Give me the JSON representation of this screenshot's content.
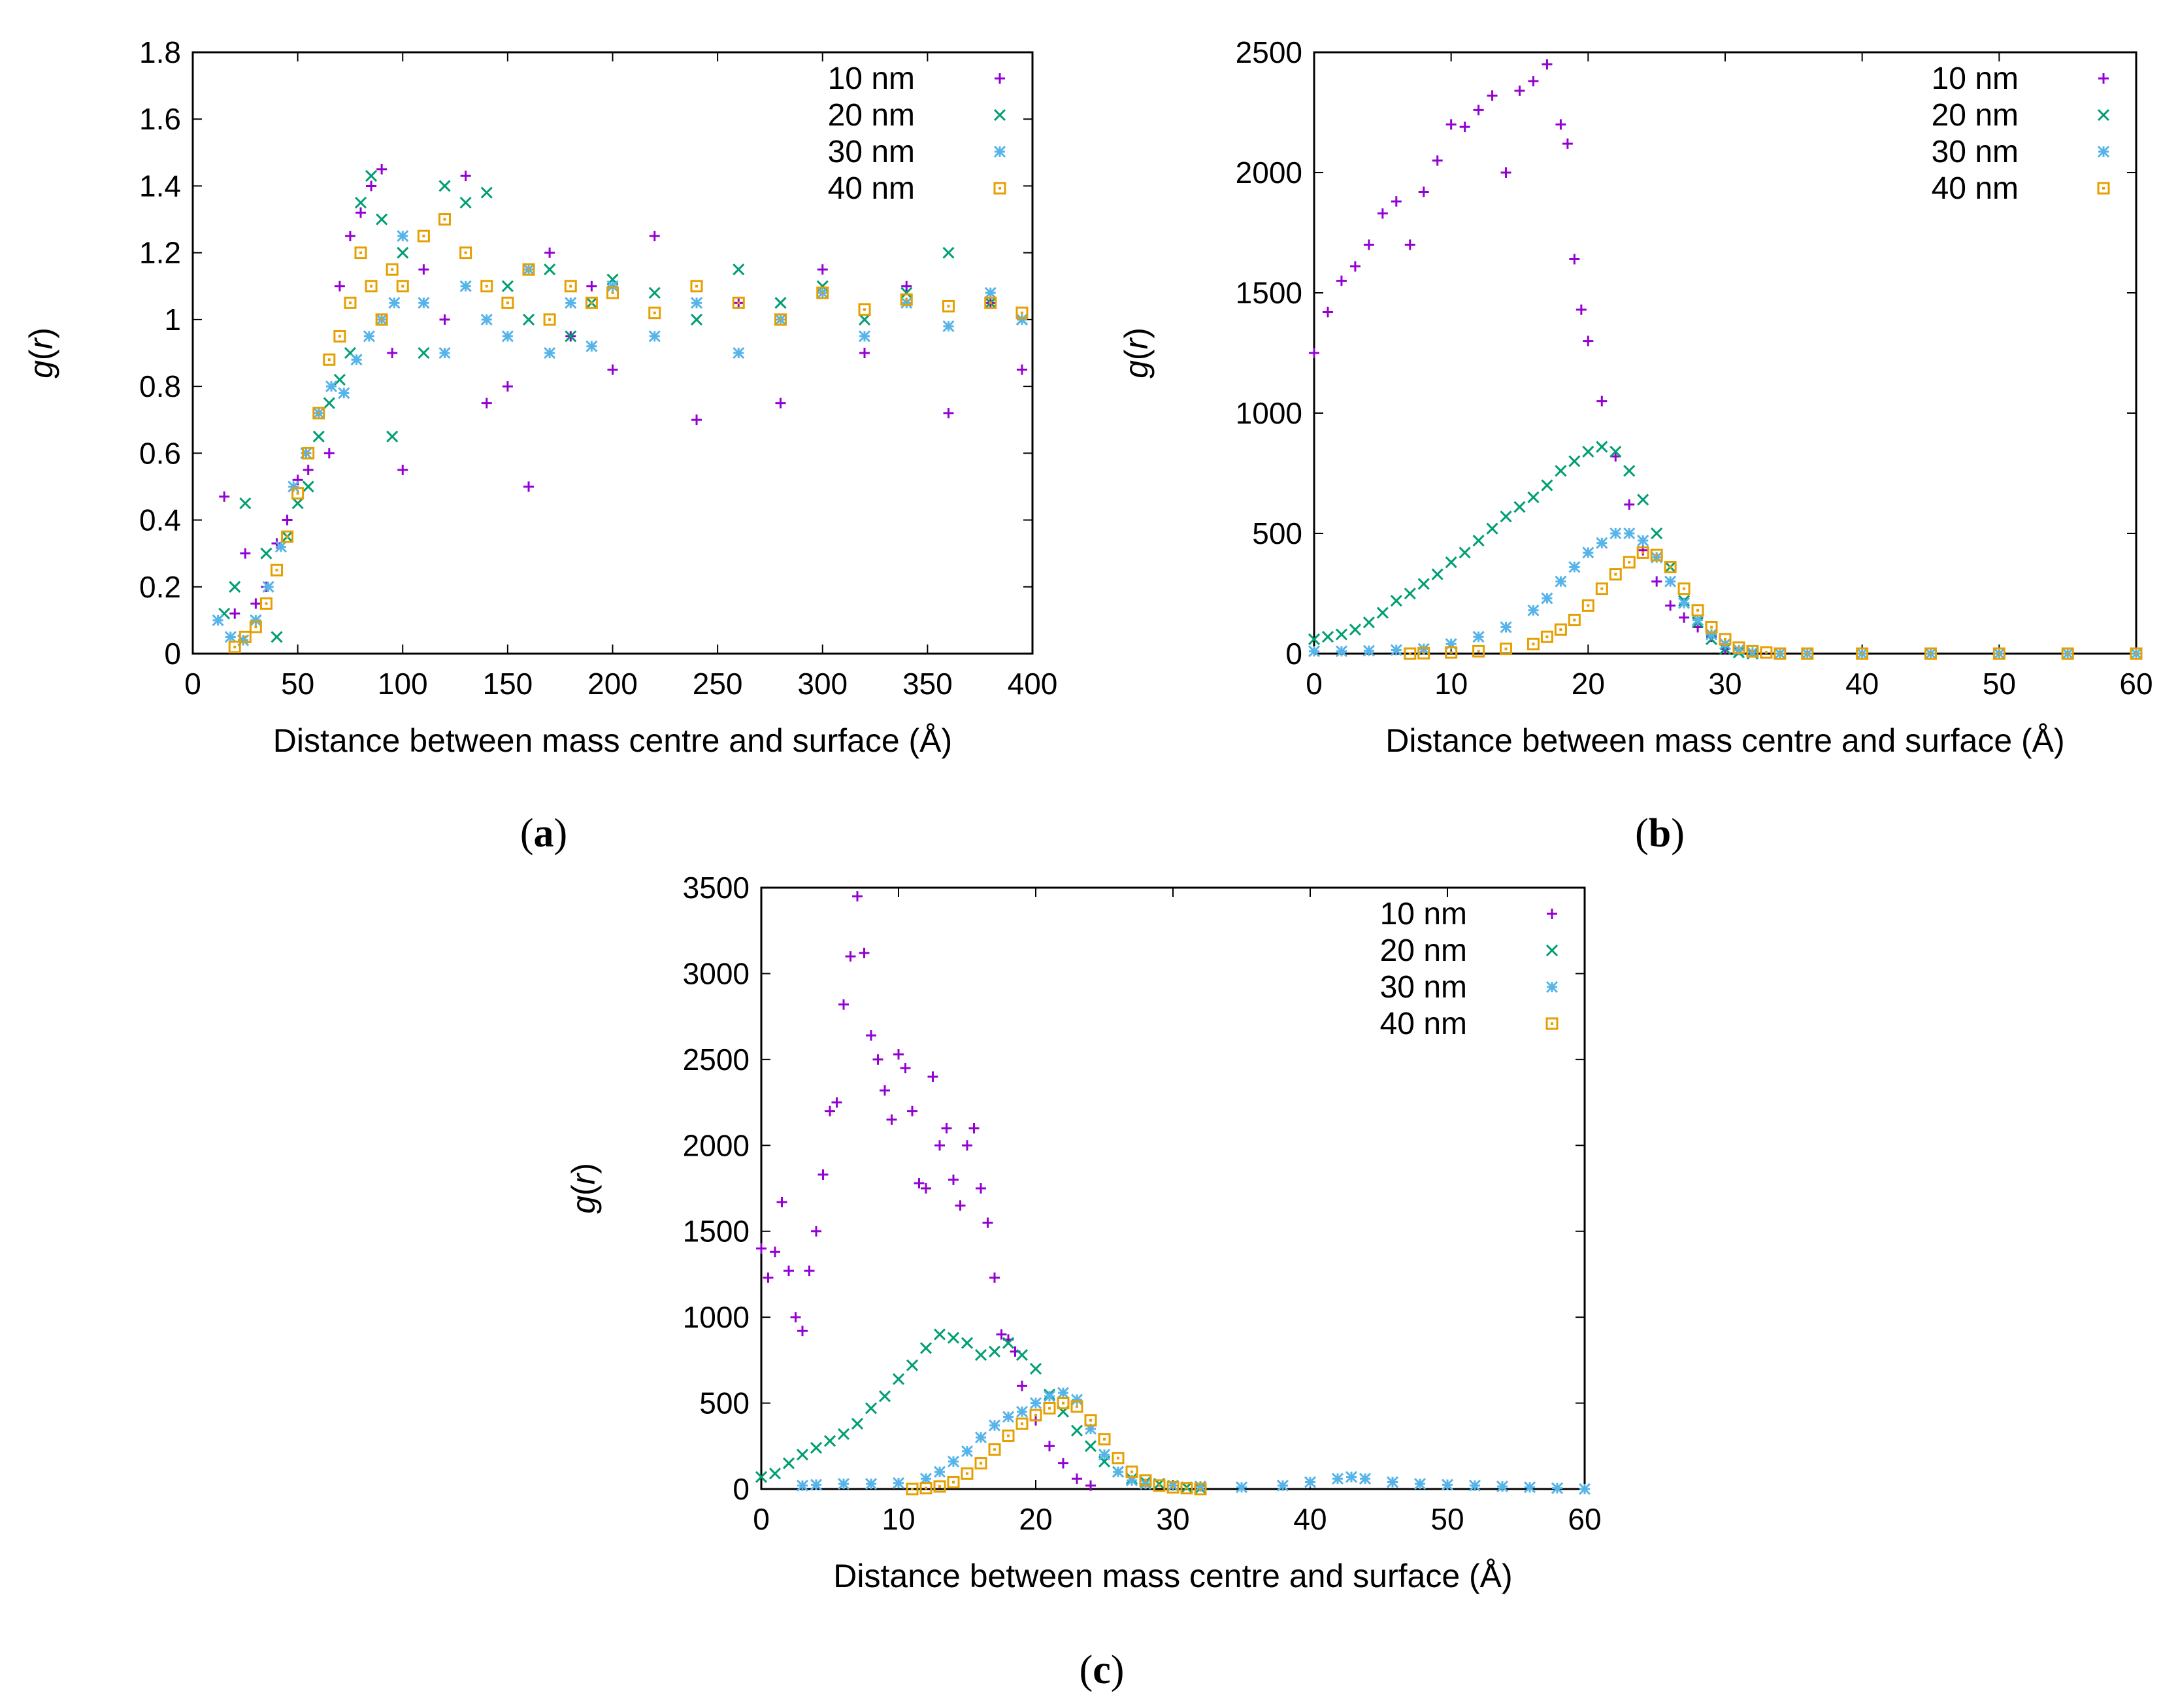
{
  "figure": {
    "panels": [
      {
        "id": "a",
        "caption": "a"
      },
      {
        "id": "b",
        "caption": "b"
      },
      {
        "id": "c",
        "caption": "c"
      }
    ]
  },
  "colors": {
    "10 nm": "#9400D3",
    "20 nm": "#009E73",
    "30 nm": "#56B4E9",
    "40 nm": "#E69F00"
  },
  "chart_data": [
    {
      "id": "a",
      "type": "scatter",
      "title": "",
      "xlabel": "Distance between mass centre and surface (Å)",
      "ylabel_main": "g",
      "ylabel_arg": "r",
      "xlim": [
        0,
        400
      ],
      "ylim": [
        0,
        1.8
      ],
      "xticks": [
        0,
        50,
        100,
        150,
        200,
        250,
        300,
        350,
        400
      ],
      "yticks": [
        0,
        0.2,
        0.4,
        0.6,
        0.8,
        1,
        1.2,
        1.4,
        1.6,
        1.8
      ],
      "ytick_labels": [
        "0",
        "0.2",
        "0.4",
        "0.6",
        "0.8",
        "1",
        "1.2",
        "1.4",
        "1.6",
        "1.8"
      ],
      "legend_position": "top-right",
      "series": [
        {
          "name": "10 nm",
          "marker": "plus",
          "x": [
            15,
            20,
            25,
            30,
            35,
            40,
            45,
            50,
            55,
            60,
            65,
            70,
            75,
            80,
            85,
            90,
            95,
            100,
            110,
            120,
            130,
            140,
            150,
            160,
            170,
            180,
            190,
            200,
            220,
            240,
            260,
            280,
            300,
            320,
            340,
            360,
            380,
            395
          ],
          "y": [
            0.47,
            0.12,
            0.3,
            0.15,
            0.2,
            0.33,
            0.4,
            0.52,
            0.55,
            0.72,
            0.6,
            1.1,
            1.25,
            1.32,
            1.4,
            1.45,
            0.9,
            0.55,
            1.15,
            1.0,
            1.43,
            0.75,
            0.8,
            0.5,
            1.2,
            0.95,
            1.1,
            0.85,
            1.25,
            0.7,
            1.05,
            0.75,
            1.15,
            0.9,
            1.1,
            0.72,
            1.05,
            0.85
          ]
        },
        {
          "name": "20 nm",
          "marker": "cross",
          "x": [
            15,
            20,
            25,
            30,
            35,
            40,
            45,
            50,
            55,
            60,
            65,
            70,
            75,
            80,
            85,
            90,
            95,
            100,
            110,
            120,
            130,
            140,
            150,
            160,
            170,
            180,
            190,
            200,
            220,
            240,
            260,
            280,
            300,
            320,
            340,
            360,
            380,
            395
          ],
          "y": [
            0.12,
            0.2,
            0.45,
            0.1,
            0.3,
            0.05,
            0.35,
            0.45,
            0.5,
            0.65,
            0.75,
            0.82,
            0.9,
            1.35,
            1.43,
            1.3,
            0.65,
            1.2,
            0.9,
            1.4,
            1.35,
            1.38,
            1.1,
            1.0,
            1.15,
            0.95,
            1.05,
            1.12,
            1.08,
            1.0,
            1.15,
            1.05,
            1.1,
            1.0,
            1.08,
            1.2,
            1.05,
            1.0
          ]
        },
        {
          "name": "30 nm",
          "marker": "star",
          "x": [
            12,
            18,
            24,
            30,
            36,
            42,
            48,
            54,
            60,
            66,
            72,
            78,
            84,
            90,
            96,
            100,
            110,
            120,
            130,
            140,
            150,
            160,
            170,
            180,
            190,
            200,
            220,
            240,
            260,
            280,
            300,
            320,
            340,
            360,
            380,
            395
          ],
          "y": [
            0.1,
            0.05,
            0.04,
            0.1,
            0.2,
            0.32,
            0.5,
            0.6,
            0.72,
            0.8,
            0.78,
            0.88,
            0.95,
            1.0,
            1.05,
            1.25,
            1.05,
            0.9,
            1.1,
            1.0,
            0.95,
            1.15,
            0.9,
            1.05,
            0.92,
            1.1,
            0.95,
            1.05,
            0.9,
            1.0,
            1.08,
            0.95,
            1.05,
            0.98,
            1.08,
            1.0
          ]
        },
        {
          "name": "40 nm",
          "marker": "square",
          "x": [
            20,
            25,
            30,
            35,
            40,
            45,
            50,
            55,
            60,
            65,
            70,
            75,
            80,
            85,
            90,
            95,
            100,
            110,
            120,
            130,
            140,
            150,
            160,
            170,
            180,
            190,
            200,
            220,
            240,
            260,
            280,
            300,
            320,
            340,
            360,
            380,
            395
          ],
          "y": [
            0.02,
            0.05,
            0.08,
            0.15,
            0.25,
            0.35,
            0.48,
            0.6,
            0.72,
            0.88,
            0.95,
            1.05,
            1.2,
            1.1,
            1.0,
            1.15,
            1.1,
            1.25,
            1.3,
            1.2,
            1.1,
            1.05,
            1.15,
            1.0,
            1.1,
            1.05,
            1.08,
            1.02,
            1.1,
            1.05,
            1.0,
            1.08,
            1.03,
            1.06,
            1.04,
            1.05,
            1.02
          ]
        }
      ]
    },
    {
      "id": "b",
      "type": "scatter",
      "title": "",
      "xlabel": "Distance between mass centre and surface (Å)",
      "ylabel_main": "g",
      "ylabel_arg": "r",
      "xlim": [
        0,
        60
      ],
      "ylim": [
        0,
        2500
      ],
      "xticks": [
        0,
        10,
        20,
        30,
        40,
        50,
        60
      ],
      "yticks": [
        0,
        500,
        1000,
        1500,
        2000,
        2500
      ],
      "ytick_labels": [
        "0",
        "500",
        "1000",
        "1500",
        "2000",
        "2500"
      ],
      "legend_position": "top-right",
      "series": [
        {
          "name": "10 nm",
          "marker": "plus",
          "x": [
            0,
            1,
            2,
            3,
            4,
            5,
            6,
            7,
            8,
            9,
            10,
            11,
            12,
            13,
            14,
            15,
            16,
            17,
            18,
            18.5,
            19,
            19.5,
            20,
            21,
            22,
            23,
            24,
            25,
            26,
            27,
            28,
            29,
            30
          ],
          "y": [
            1250,
            1420,
            1550,
            1610,
            1700,
            1830,
            1880,
            1700,
            1920,
            2050,
            2200,
            2190,
            2260,
            2320,
            2000,
            2340,
            2380,
            2450,
            2200,
            2120,
            1640,
            1430,
            1300,
            1050,
            820,
            620,
            430,
            300,
            200,
            150,
            110,
            70,
            20
          ]
        },
        {
          "name": "20 nm",
          "marker": "cross",
          "x": [
            0,
            1,
            2,
            3,
            4,
            5,
            6,
            7,
            8,
            9,
            10,
            11,
            12,
            13,
            14,
            15,
            16,
            17,
            18,
            19,
            20,
            21,
            22,
            23,
            24,
            25,
            26,
            27,
            28,
            29,
            30,
            31,
            32
          ],
          "y": [
            60,
            70,
            80,
            100,
            130,
            170,
            220,
            250,
            290,
            330,
            380,
            420,
            470,
            520,
            570,
            610,
            650,
            700,
            760,
            800,
            840,
            860,
            840,
            760,
            640,
            500,
            360,
            220,
            130,
            60,
            20,
            5,
            0
          ]
        },
        {
          "name": "30 nm",
          "marker": "star",
          "x": [
            0,
            2,
            4,
            6,
            8,
            10,
            12,
            14,
            16,
            17,
            18,
            19,
            20,
            21,
            22,
            23,
            24,
            25,
            26,
            27,
            28,
            29,
            30,
            31,
            32,
            34,
            36,
            40,
            45,
            50,
            55,
            60
          ],
          "y": [
            10,
            10,
            12,
            15,
            20,
            40,
            70,
            110,
            180,
            230,
            300,
            360,
            420,
            460,
            500,
            500,
            470,
            400,
            300,
            210,
            140,
            80,
            40,
            15,
            5,
            0,
            0,
            0,
            0,
            0,
            0,
            0
          ]
        },
        {
          "name": "40 nm",
          "marker": "square",
          "x": [
            7,
            8,
            10,
            12,
            14,
            16,
            17,
            18,
            19,
            20,
            21,
            22,
            23,
            24,
            25,
            26,
            27,
            28,
            29,
            30,
            31,
            32,
            33,
            34,
            36,
            40,
            45,
            50,
            55,
            60
          ],
          "y": [
            0,
            2,
            5,
            10,
            20,
            40,
            70,
            100,
            140,
            200,
            270,
            330,
            380,
            420,
            410,
            360,
            270,
            180,
            110,
            60,
            25,
            10,
            5,
            0,
            0,
            0,
            0,
            0,
            0,
            0
          ]
        }
      ]
    },
    {
      "id": "c",
      "type": "scatter",
      "title": "",
      "xlabel": "Distance between mass centre and surface (Å)",
      "ylabel_main": "g",
      "ylabel_arg": "r",
      "xlim": [
        0,
        60
      ],
      "ylim": [
        0,
        3500
      ],
      "xticks": [
        0,
        10,
        20,
        30,
        40,
        50,
        60
      ],
      "yticks": [
        0,
        500,
        1000,
        1500,
        2000,
        2500,
        3000,
        3500
      ],
      "ytick_labels": [
        "0",
        "500",
        "1000",
        "1500",
        "2000",
        "2500",
        "3000",
        "3500"
      ],
      "legend_position": "top-right",
      "series": [
        {
          "name": "10 nm",
          "marker": "plus",
          "x": [
            0,
            0.5,
            1,
            1.5,
            2,
            2.5,
            3,
            3.5,
            4,
            4.5,
            5,
            5.5,
            6,
            6.5,
            7,
            7.5,
            8,
            8.5,
            9,
            9.5,
            10,
            10.5,
            11,
            11.5,
            12,
            12.5,
            13,
            13.5,
            14,
            14.5,
            15,
            15.5,
            16,
            16.5,
            17,
            17.5,
            18,
            18.5,
            19,
            20,
            21,
            22,
            23,
            24
          ],
          "y": [
            1400,
            1230,
            1380,
            1670,
            1270,
            1000,
            920,
            1270,
            1500,
            1830,
            2200,
            2250,
            2820,
            3100,
            3450,
            3120,
            2640,
            2500,
            2320,
            2150,
            2530,
            2450,
            2200,
            1780,
            1750,
            2400,
            2000,
            2100,
            1800,
            1650,
            2000,
            2100,
            1750,
            1550,
            1230,
            900,
            870,
            800,
            600,
            400,
            250,
            150,
            60,
            20
          ]
        },
        {
          "name": "20 nm",
          "marker": "cross",
          "x": [
            0,
            1,
            2,
            3,
            4,
            5,
            6,
            7,
            8,
            9,
            10,
            11,
            12,
            13,
            14,
            15,
            16,
            17,
            18,
            19,
            20,
            21,
            22,
            23,
            24,
            25,
            26,
            27,
            28,
            29,
            30,
            31,
            32
          ],
          "y": [
            70,
            90,
            150,
            200,
            240,
            280,
            320,
            380,
            470,
            540,
            640,
            720,
            820,
            900,
            880,
            850,
            780,
            800,
            850,
            780,
            700,
            550,
            450,
            340,
            250,
            160,
            100,
            60,
            40,
            30,
            20,
            10,
            5
          ]
        },
        {
          "name": "30 nm",
          "marker": "star",
          "x": [
            3,
            4,
            6,
            8,
            10,
            12,
            13,
            14,
            15,
            16,
            17,
            18,
            19,
            20,
            21,
            22,
            23,
            24,
            25,
            26,
            27,
            28,
            30,
            32,
            35,
            38,
            40,
            42,
            43,
            44,
            46,
            48,
            50,
            52,
            54,
            56,
            58,
            60
          ],
          "y": [
            20,
            25,
            30,
            30,
            35,
            60,
            100,
            160,
            220,
            300,
            370,
            420,
            450,
            500,
            540,
            560,
            520,
            350,
            200,
            100,
            50,
            30,
            20,
            15,
            10,
            20,
            40,
            60,
            70,
            60,
            40,
            30,
            25,
            20,
            15,
            10,
            5,
            0
          ]
        },
        {
          "name": "40 nm",
          "marker": "square",
          "x": [
            11,
            12,
            13,
            14,
            15,
            16,
            17,
            18,
            19,
            20,
            21,
            22,
            23,
            24,
            25,
            26,
            27,
            28,
            29,
            30,
            31,
            32
          ],
          "y": [
            0,
            5,
            15,
            40,
            90,
            150,
            230,
            310,
            380,
            430,
            470,
            500,
            480,
            400,
            290,
            180,
            100,
            50,
            20,
            10,
            5,
            0
          ]
        }
      ]
    }
  ]
}
